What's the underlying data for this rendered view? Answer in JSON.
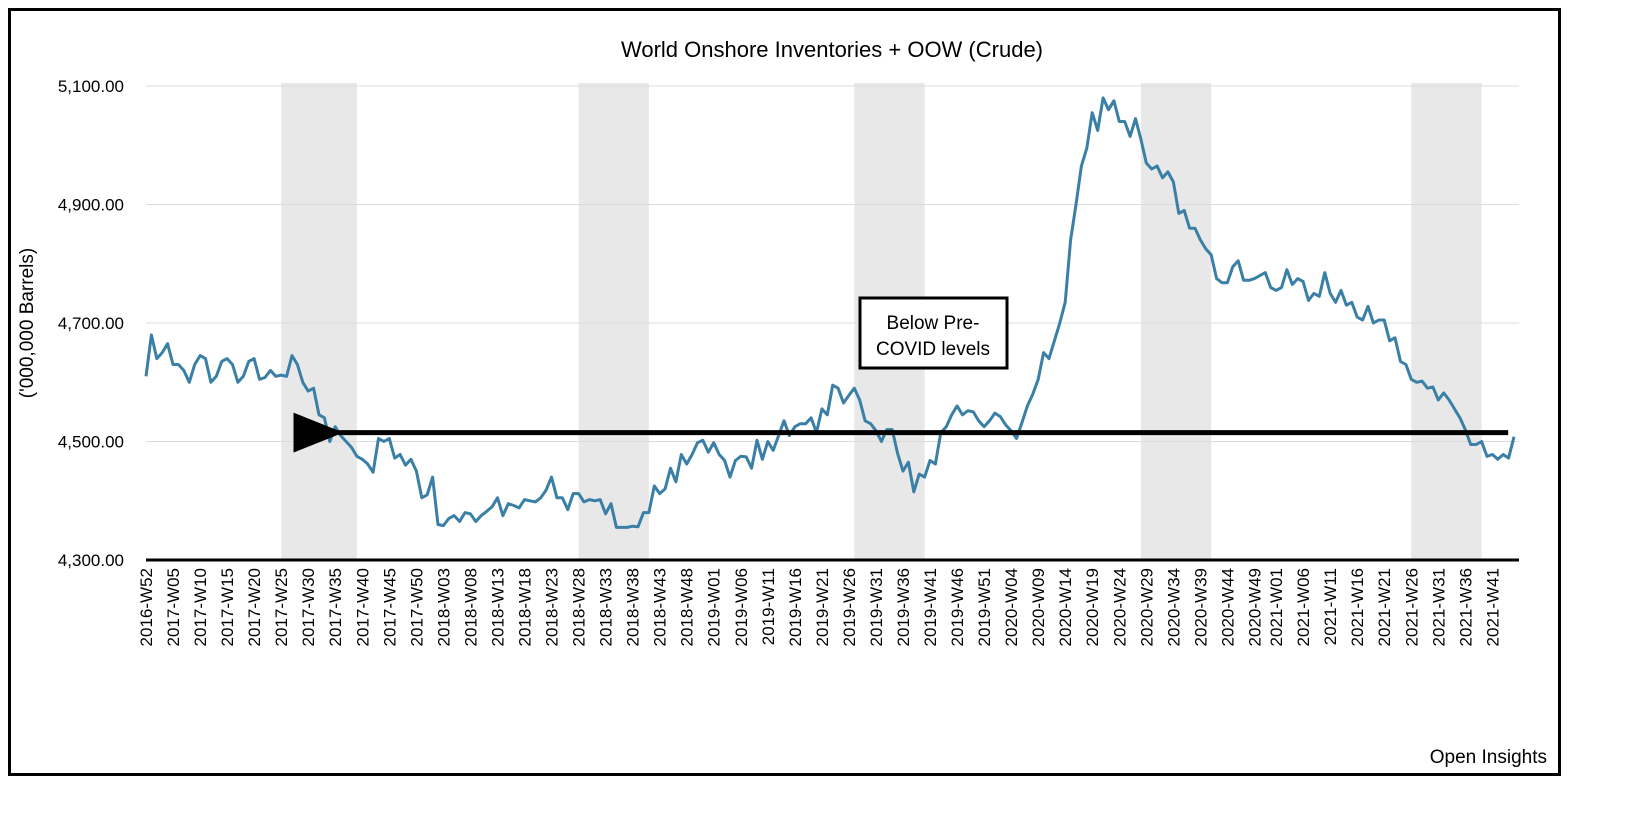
{
  "chart_data": {
    "type": "line",
    "title": "World Onshore Inventories + OOW (Crude)",
    "xlabel": "",
    "ylabel": "('000,000 Barrels)",
    "ylim": [
      4300,
      5100
    ],
    "y_ticks": [
      "4,300.00",
      "4,500.00",
      "4,700.00",
      "4,900.00",
      "5,100.00"
    ],
    "y_tick_values": [
      4300,
      4500,
      4700,
      4900,
      5100
    ],
    "grid": "horizontal",
    "x_tick_labels": [
      "2016-W52",
      "2017-W05",
      "2017-W10",
      "2017-W15",
      "2017-W20",
      "2017-W25",
      "2017-W30",
      "2017-W35",
      "2017-W40",
      "2017-W45",
      "2017-W50",
      "2018-W03",
      "2018-W08",
      "2018-W13",
      "2018-W18",
      "2018-W23",
      "2018-W28",
      "2018-W33",
      "2018-W38",
      "2018-W43",
      "2018-W48",
      "2019-W01",
      "2019-W06",
      "2019-W11",
      "2019-W16",
      "2019-W21",
      "2019-W26",
      "2019-W31",
      "2019-W36",
      "2019-W41",
      "2019-W46",
      "2019-W51",
      "2020-W04",
      "2020-W09",
      "2020-W14",
      "2020-W19",
      "2020-W24",
      "2020-W29",
      "2020-W34",
      "2020-W39",
      "2020-W44",
      "2020-W49",
      "2021-W01",
      "2021-W06",
      "2021-W11",
      "2021-W16",
      "2021-W21",
      "2021-W26",
      "2021-W31",
      "2021-W36",
      "2021-W41"
    ],
    "shaded_ranges": [
      [
        "2017-W25",
        "2017-W39"
      ],
      [
        "2018-W28",
        "2018-W41"
      ],
      [
        "2019-W27",
        "2019-W40"
      ],
      [
        "2020-W28",
        "2020-W41"
      ],
      [
        "2021-W26",
        "2021-W39"
      ]
    ],
    "series": [
      {
        "name": "",
        "color": "#3a7fa6",
        "start_week": "2016-W52",
        "values": [
          4610,
          4680,
          4640,
          4650,
          4665,
          4630,
          4630,
          4620,
          4600,
          4630,
          4645,
          4640,
          4600,
          4610,
          4635,
          4640,
          4630,
          4600,
          4610,
          4635,
          4640,
          4605,
          4608,
          4620,
          4610,
          4612,
          4610,
          4645,
          4630,
          4600,
          4585,
          4590,
          4545,
          4540,
          4500,
          4525,
          4510,
          4500,
          4490,
          4475,
          4470,
          4462,
          4448,
          4505,
          4500,
          4505,
          4472,
          4478,
          4460,
          4470,
          4450,
          4405,
          4410,
          4440,
          4360,
          4358,
          4370,
          4375,
          4365,
          4380,
          4378,
          4365,
          4375,
          4382,
          4390,
          4405,
          4375,
          4395,
          4392,
          4388,
          4402,
          4400,
          4398,
          4405,
          4418,
          4440,
          4405,
          4405,
          4385,
          4412,
          4412,
          4398,
          4402,
          4400,
          4402,
          4378,
          4395,
          4355,
          4355,
          4355,
          4357,
          4356,
          4380,
          4380,
          4425,
          4412,
          4420,
          4455,
          4432,
          4478,
          4462,
          4478,
          4498,
          4502,
          4482,
          4498,
          4478,
          4468,
          4440,
          4468,
          4475,
          4474,
          4455,
          4502,
          4470,
          4500,
          4485,
          4510,
          4535,
          4510,
          4525,
          4530,
          4530,
          4540,
          4515,
          4555,
          4545,
          4595,
          4590,
          4565,
          4578,
          4590,
          4570,
          4535,
          4530,
          4518,
          4500,
          4520,
          4520,
          4480,
          4450,
          4465,
          4415,
          4445,
          4440,
          4468,
          4462,
          4515,
          4525,
          4545,
          4560,
          4545,
          4552,
          4550,
          4535,
          4525,
          4535,
          4548,
          4542,
          4528,
          4518,
          4505,
          4532,
          4560,
          4580,
          4605,
          4650,
          4640,
          4670,
          4700,
          4735,
          4840,
          4900,
          4965,
          4995,
          5055,
          5025,
          5080,
          5060,
          5075,
          5040,
          5040,
          5015,
          5045,
          5010,
          4970,
          4960,
          4965,
          4945,
          4955,
          4938,
          4885,
          4890,
          4860,
          4860,
          4840,
          4825,
          4815,
          4775,
          4768,
          4768,
          4795,
          4805,
          4772,
          4772,
          4775,
          4780,
          4785,
          4760,
          4755,
          4760,
          4790,
          4765,
          4775,
          4770,
          4738,
          4750,
          4745,
          4785,
          4750,
          4735,
          4755,
          4730,
          4735,
          4710,
          4705,
          4728,
          4700,
          4705,
          4705,
          4670,
          4675,
          4635,
          4630,
          4605,
          4600,
          4602,
          4590,
          4592,
          4570,
          4582,
          4570,
          4555,
          4540,
          4520,
          4495,
          4495,
          4500,
          4475,
          4478,
          4470,
          4478,
          4472,
          4508
        ]
      }
    ],
    "annotations": [
      {
        "text_lines": [
          "Below Pre-",
          "COVID levels"
        ]
      },
      {
        "type": "arrow",
        "y": 4515,
        "from_week": "2021-W43",
        "to_week": "2017-W33"
      }
    ],
    "source": "Open Insights"
  }
}
